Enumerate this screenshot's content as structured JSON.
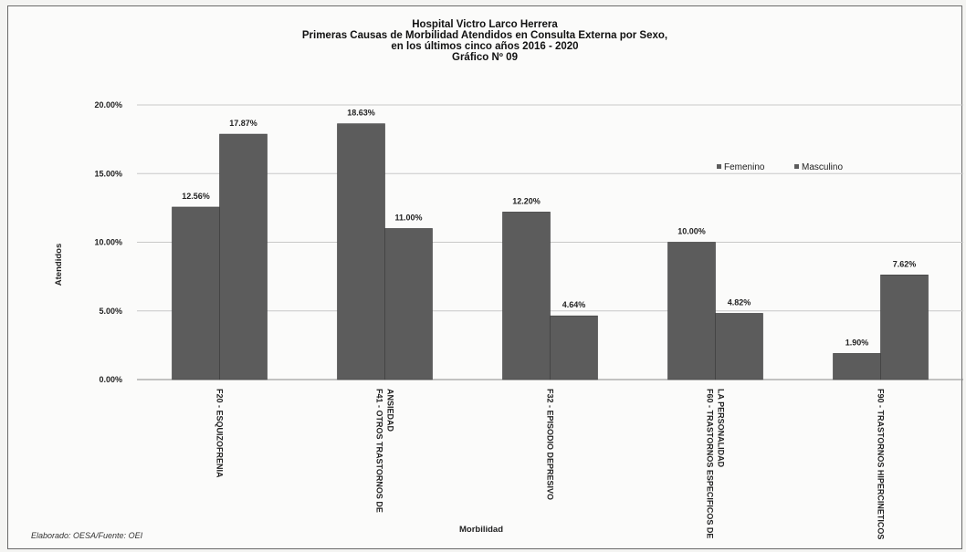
{
  "chart_data": {
    "type": "bar",
    "title": "Hospital Victro Larco Herrera",
    "subtitle_lines": [
      "Primeras Causas de Morbilidad Atendidos en Consulta Externa por Sexo,",
      "en los últimos cinco años 2016 - 2020",
      "Gráfico Nº 09"
    ],
    "xlabel": "Morbilidad",
    "ylabel": "Atendidos",
    "ylim": [
      0,
      20
    ],
    "yticks": [
      0,
      5,
      10,
      15,
      20
    ],
    "ytick_labels": [
      "0.00%",
      "5.00%",
      "10.00%",
      "15.00%",
      "20.00%"
    ],
    "categories": [
      [
        "F20 - ESQUIZOFRENIA"
      ],
      [
        "F41 - OTROS TRASTORNOS DE",
        "ANSIEDAD"
      ],
      [
        "F32 - EPISODIO DEPRESIVO"
      ],
      [
        "F60 - TRASTORNOS ESPECIFICOS DE",
        "LA PERSONALIDAD"
      ],
      [
        "F90 - TRASTORNOS HIPERCINETICOS"
      ]
    ],
    "series": [
      {
        "name": "Femenino",
        "values": [
          12.56,
          18.63,
          12.2,
          10.0,
          1.9
        ],
        "labels": [
          "12.56%",
          "18.63%",
          "12.20%",
          "10.00%",
          "1.90%"
        ]
      },
      {
        "name": "Masculino",
        "values": [
          17.87,
          11.0,
          4.64,
          4.82,
          7.62
        ],
        "labels": [
          "17.87%",
          "11.00%",
          "4.64%",
          "4.82%",
          "7.62%"
        ]
      }
    ],
    "grid": true,
    "legend_position": "right, upper middle",
    "bar_color": "#5c5c5c"
  },
  "footer": "Elaborado: OESA/Fuente: OEI"
}
